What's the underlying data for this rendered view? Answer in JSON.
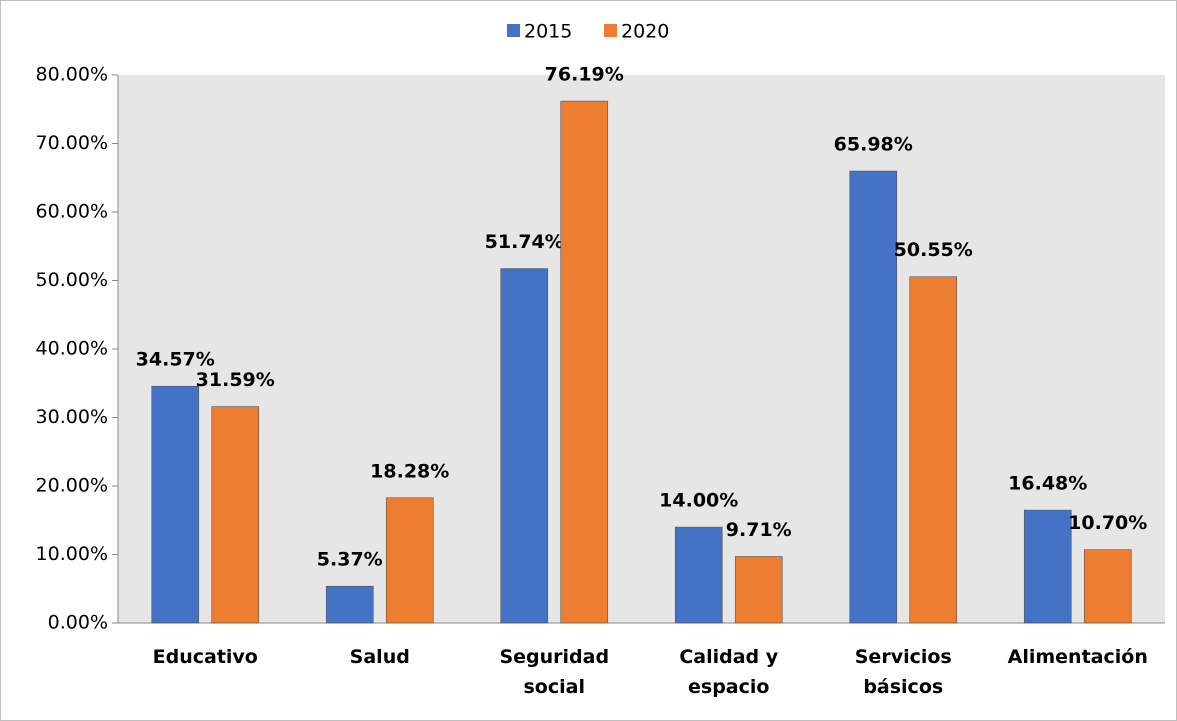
{
  "chart_data": {
    "type": "bar",
    "categories": [
      "Educativo",
      "Salud",
      "Seguridad social",
      "Calidad y espacio",
      "Servicios básicos",
      "Alimentación"
    ],
    "series": [
      {
        "name": "2015",
        "color": "#4472c4",
        "values": [
          34.57,
          5.37,
          51.74,
          14.0,
          65.98,
          16.48
        ],
        "value_labels": [
          "34.57%",
          "5.37%",
          "51.74%",
          "14.00%",
          "65.98%",
          "16.48%"
        ]
      },
      {
        "name": "2020",
        "color": "#ed7d31",
        "values": [
          31.59,
          18.28,
          76.19,
          9.71,
          50.55,
          10.7
        ],
        "value_labels": [
          "31.59%",
          "18.28%",
          "76.19%",
          "9.71%",
          "50.55%",
          "10.70%"
        ]
      }
    ],
    "ylim": [
      0,
      80
    ],
    "yticks": [
      {
        "value": 0,
        "label": "0.00%"
      },
      {
        "value": 10,
        "label": "10.00%"
      },
      {
        "value": 20,
        "label": "20.00%"
      },
      {
        "value": 30,
        "label": "30.00%"
      },
      {
        "value": 40,
        "label": "40.00%"
      },
      {
        "value": 50,
        "label": "50.00%"
      },
      {
        "value": 60,
        "label": "60.00%"
      },
      {
        "value": 70,
        "label": "70.00%"
      },
      {
        "value": 80,
        "label": "80.00%"
      }
    ],
    "legend": "top"
  }
}
